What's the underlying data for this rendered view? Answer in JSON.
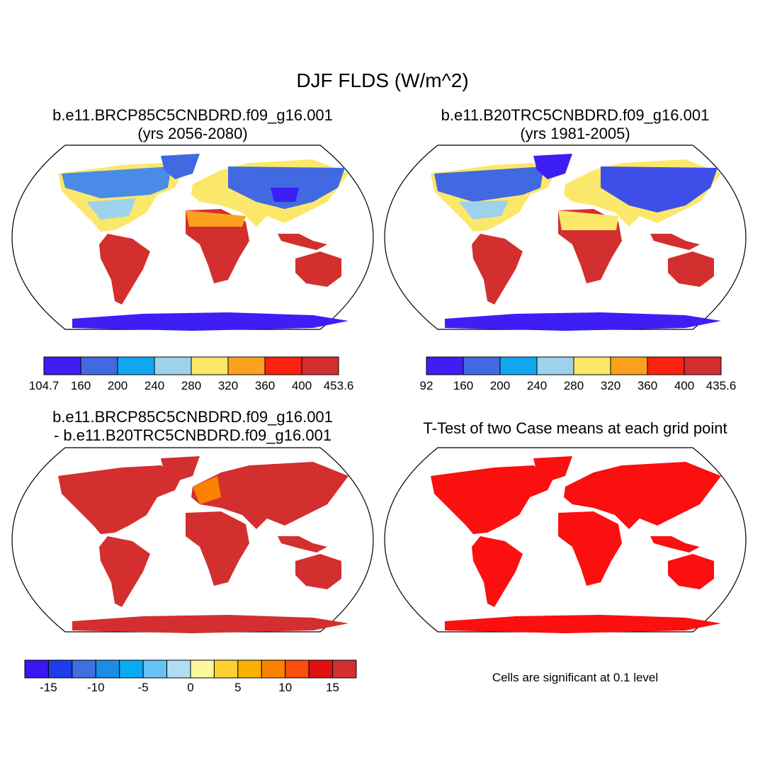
{
  "main_title": "DJF FLDS (W/m^2)",
  "panels": {
    "case1": {
      "title_line1": "b.e11.BRCP85C5CNBDRD.f09_g16.001",
      "title_line2": "(yrs 2056-2080)"
    },
    "case2": {
      "title_line1": "b.e11.B20TRC5CNBDRD.f09_g16.001",
      "title_line2": "(yrs 1981-2005)"
    },
    "diff": {
      "title_line1": "b.e11.BRCP85C5CNBDRD.f09_g16.001",
      "title_line2": "- b.e11.B20TRC5CNBDRD.f09_g16.001"
    },
    "ttest": {
      "title_line1": "T-Test of two Case means at each grid point",
      "note": "Cells are significant at 0.1 level"
    }
  },
  "chart_data": [
    {
      "type": "heatmap",
      "title": "b.e11.BRCP85C5CNBDRD.f09_g16.001 (yrs 2056-2080)",
      "projection": "robinson world map",
      "colorbar": {
        "labels": [
          "104.7",
          "160",
          "200",
          "240",
          "280",
          "320",
          "360",
          "400",
          "453.6"
        ],
        "colors": [
          "#3d1ef5",
          "#4169e1",
          "#10a7f0",
          "#9dd1ec",
          "#fbe86a",
          "#fba11e",
          "#fb2211",
          "#d32f2f"
        ]
      }
    },
    {
      "type": "heatmap",
      "title": "b.e11.B20TRC5CNBDRD.f09_g16.001 (yrs 1981-2005)",
      "projection": "robinson world map",
      "colorbar": {
        "labels": [
          "92",
          "160",
          "200",
          "240",
          "280",
          "320",
          "360",
          "400",
          "435.6"
        ],
        "colors": [
          "#3d1ef5",
          "#4169e1",
          "#10a7f0",
          "#9dd1ec",
          "#fbe86a",
          "#fba11e",
          "#fb2211",
          "#d32f2f"
        ]
      }
    },
    {
      "type": "heatmap",
      "title": "b.e11.BRCP85C5CNBDRD.f09_g16.001 - b.e11.B20TRC5CNBDRD.f09_g16.001",
      "projection": "robinson world map",
      "colorbar": {
        "labels": [
          "-15",
          "-10",
          "-5",
          "0",
          "5",
          "10",
          "15"
        ],
        "colors": [
          "#3b15f2",
          "#1e3bec",
          "#3f6fe0",
          "#1d8be8",
          "#07abf2",
          "#64c2f5",
          "#b1def3",
          "#fdf79c",
          "#fed131",
          "#fbb100",
          "#fb8100",
          "#fa4d10",
          "#e01010",
          "#d32f2f"
        ]
      }
    },
    {
      "type": "heatmap",
      "title": "T-Test of two Case means at each grid point",
      "projection": "robinson world map",
      "significant_color": "#fb0f0f"
    }
  ]
}
